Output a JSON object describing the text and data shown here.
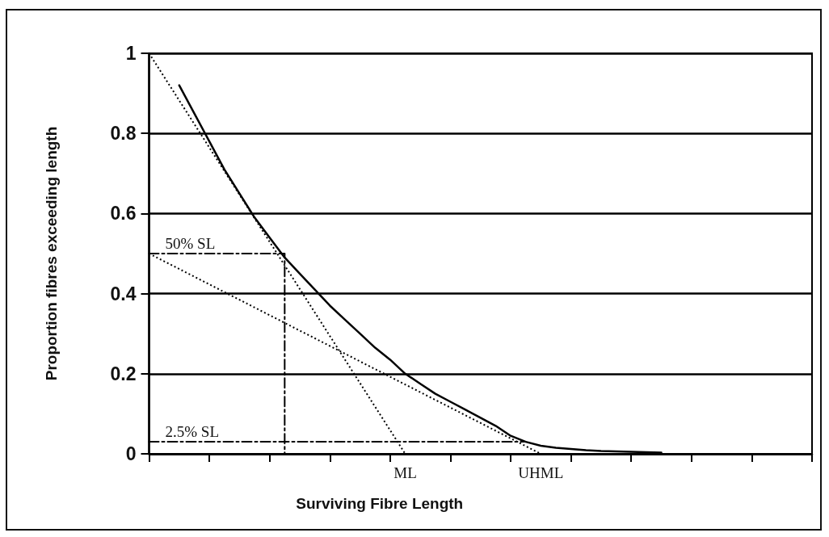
{
  "chart_data": {
    "type": "line",
    "xlabel": "Surviving Fibre Length",
    "ylabel": "Proportion fibres exceeding length",
    "categories": [
      null,
      null,
      null,
      null,
      null,
      null,
      null,
      null,
      null,
      null,
      null,
      null,
      null,
      null,
      null,
      null,
      null,
      "ML",
      null,
      null,
      null,
      null,
      null,
      null,
      null,
      null,
      "UHML",
      null,
      null,
      null,
      null,
      null,
      null,
      null,
      null,
      null,
      null,
      null,
      null,
      null,
      null,
      null,
      null,
      null,
      null
    ],
    "ylim": [
      0,
      1
    ],
    "yticks": [
      0,
      0.2,
      0.4,
      0.6,
      0.8,
      1
    ],
    "grid": "y",
    "marker": "none",
    "series": [
      {
        "color": "#000000",
        "line_style": "solid",
        "values": [
          null,
          null,
          0.92,
          0.85,
          0.78,
          0.71,
          0.65,
          0.59,
          0.54,
          0.49,
          0.45,
          0.41,
          0.37,
          0.335,
          0.3,
          0.265,
          0.235,
          0.2,
          0.175,
          0.15,
          0.13,
          0.11,
          0.09,
          0.07,
          0.045,
          0.03,
          0.02,
          0.015,
          0.012,
          0.009,
          0.007,
          0.006,
          0.005,
          0.004,
          0.003,
          null,
          null,
          null,
          null,
          null,
          null,
          null,
          null,
          null,
          null
        ]
      },
      {
        "color": "#000000",
        "line_style": "dotted",
        "values": [
          1,
          null,
          null,
          null,
          null,
          null,
          null,
          null,
          null,
          null,
          null,
          null,
          null,
          null,
          null,
          null,
          null,
          0,
          null,
          null,
          null,
          null,
          null,
          null,
          null,
          null,
          null,
          null,
          null,
          null,
          null,
          null,
          null,
          null,
          null,
          null,
          null,
          null,
          null,
          null,
          null,
          null,
          null,
          null,
          null
        ]
      },
      {
        "color": "#000000",
        "line_style": "dotted",
        "values": [
          0.5,
          null,
          null,
          null,
          null,
          null,
          null,
          null,
          null,
          null,
          null,
          null,
          null,
          null,
          null,
          null,
          null,
          null,
          null,
          null,
          null,
          null,
          null,
          null,
          null,
          null,
          0,
          null,
          null,
          null,
          null,
          null,
          null,
          null,
          null,
          null,
          null,
          null,
          null,
          null,
          null,
          null,
          null,
          null,
          null
        ]
      },
      {
        "type": "step",
        "color": "#000000",
        "line_style": "dashed",
        "values": [
          0.5,
          null,
          null,
          null,
          null,
          null,
          null,
          null,
          null,
          0,
          null,
          null,
          null,
          null,
          null,
          null,
          null,
          null,
          null,
          null,
          null,
          null,
          null,
          null,
          null,
          null,
          null,
          null,
          null,
          null,
          null,
          null,
          null,
          null,
          null,
          null,
          null,
          null,
          null,
          null,
          null,
          null,
          null,
          null,
          null
        ]
      },
      {
        "color": "#000000",
        "line_style": "dashed",
        "values": [
          0.03,
          null,
          null,
          null,
          null,
          null,
          null,
          null,
          null,
          null,
          null,
          null,
          null,
          null,
          null,
          null,
          null,
          null,
          null,
          null,
          null,
          null,
          null,
          null,
          null,
          0.03,
          null,
          null,
          null,
          null,
          null,
          null,
          null,
          null,
          null,
          null,
          null,
          null,
          null,
          null,
          null,
          null,
          null,
          null,
          null
        ]
      }
    ],
    "annotations": [
      {
        "text": "50% SL",
        "y": 0.5
      },
      {
        "text": "2.5% SL",
        "y": 0.03
      }
    ]
  }
}
